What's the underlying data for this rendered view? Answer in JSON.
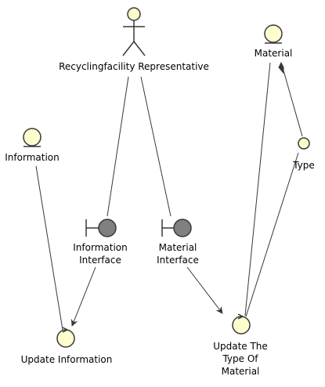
{
  "colors": {
    "stroke": "#383838",
    "fill_light": "#FEFECE",
    "fill_boundary": "#808080",
    "text": "#000000"
  },
  "nodes": {
    "actor": {
      "label": "Recyclingfacility Representative",
      "kind": "actor"
    },
    "information": {
      "label": "Information",
      "kind": "entity"
    },
    "material": {
      "label": "Material",
      "kind": "entity"
    },
    "type": {
      "label": "Type",
      "kind": "entity-small"
    },
    "information_interface": {
      "label_lines": [
        "Information",
        "Interface"
      ],
      "kind": "boundary"
    },
    "material_interface": {
      "label_lines": [
        "Material",
        "Interface"
      ],
      "kind": "boundary"
    },
    "update_information": {
      "label": "Update Information",
      "kind": "control"
    },
    "update_type": {
      "label_lines": [
        "Update The",
        "Type Of",
        "Material"
      ],
      "kind": "control"
    }
  },
  "edges": [
    {
      "from": "actor",
      "to": "information_interface",
      "style": "line"
    },
    {
      "from": "actor",
      "to": "material_interface",
      "style": "line"
    },
    {
      "from": "information",
      "to": "update_information",
      "style": "line"
    },
    {
      "from": "information_interface",
      "to": "update_information",
      "style": "arrow"
    },
    {
      "from": "material_interface",
      "to": "update_type",
      "style": "arrow"
    },
    {
      "from": "material",
      "to": "update_type",
      "style": "line"
    },
    {
      "from": "material",
      "to": "type",
      "style": "composition"
    },
    {
      "from": "type",
      "to": "update_type",
      "style": "line"
    }
  ]
}
